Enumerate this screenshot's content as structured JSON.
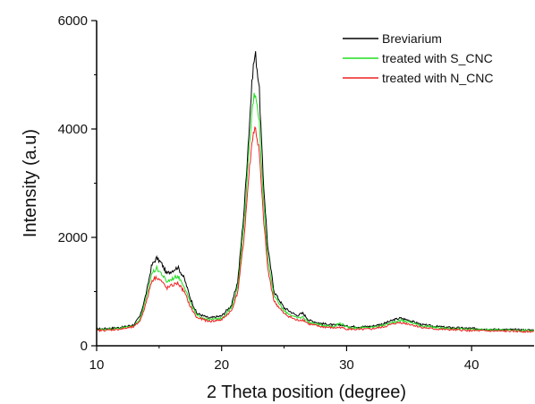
{
  "chart_data": {
    "type": "line",
    "xlabel": "2 Theta position (degree)",
    "ylabel": "Intensity (a.u)",
    "xlim": [
      10,
      45
    ],
    "ylim": [
      0,
      6000
    ],
    "xticks": [
      10,
      20,
      30,
      40
    ],
    "yticks": [
      0,
      2000,
      4000,
      6000
    ],
    "grid": false,
    "legend_position": "top-right",
    "series": [
      {
        "name": "Breviarium",
        "color": "#000000",
        "points": [
          [
            10,
            310
          ],
          [
            11,
            320
          ],
          [
            12,
            340
          ],
          [
            13,
            390
          ],
          [
            13.5,
            560
          ],
          [
            14,
            1000
          ],
          [
            14.4,
            1480
          ],
          [
            14.8,
            1620
          ],
          [
            15.2,
            1520
          ],
          [
            15.6,
            1330
          ],
          [
            16,
            1380
          ],
          [
            16.5,
            1450
          ],
          [
            17,
            1250
          ],
          [
            17.5,
            880
          ],
          [
            18,
            600
          ],
          [
            19,
            510
          ],
          [
            20,
            550
          ],
          [
            20.8,
            750
          ],
          [
            21.3,
            1200
          ],
          [
            21.8,
            2500
          ],
          [
            22.2,
            4000
          ],
          [
            22.5,
            5100
          ],
          [
            22.7,
            5400
          ],
          [
            23,
            4800
          ],
          [
            23.3,
            3200
          ],
          [
            23.7,
            1800
          ],
          [
            24.2,
            1000
          ],
          [
            25,
            700
          ],
          [
            26,
            560
          ],
          [
            26.5,
            600
          ],
          [
            27,
            470
          ],
          [
            28,
            410
          ],
          [
            29,
            380
          ],
          [
            29.5,
            390
          ],
          [
            30,
            360
          ],
          [
            31,
            350
          ],
          [
            32,
            360
          ],
          [
            33,
            410
          ],
          [
            33.8,
            480
          ],
          [
            34.3,
            510
          ],
          [
            35,
            470
          ],
          [
            36,
            390
          ],
          [
            37,
            360
          ],
          [
            38,
            340
          ],
          [
            40,
            320
          ],
          [
            42,
            300
          ],
          [
            43,
            300
          ],
          [
            45,
            290
          ]
        ]
      },
      {
        "name": "treated with S_CNC",
        "color": "#22dd22",
        "points": [
          [
            10,
            300
          ],
          [
            11,
            310
          ],
          [
            12,
            330
          ],
          [
            13,
            370
          ],
          [
            13.5,
            510
          ],
          [
            14,
            900
          ],
          [
            14.4,
            1330
          ],
          [
            14.8,
            1430
          ],
          [
            15.2,
            1330
          ],
          [
            15.6,
            1180
          ],
          [
            16,
            1230
          ],
          [
            16.5,
            1290
          ],
          [
            17,
            1110
          ],
          [
            17.5,
            790
          ],
          [
            18,
            560
          ],
          [
            19,
            480
          ],
          [
            20,
            510
          ],
          [
            20.8,
            700
          ],
          [
            21.3,
            1100
          ],
          [
            21.8,
            2250
          ],
          [
            22.2,
            3600
          ],
          [
            22.5,
            4500
          ],
          [
            22.7,
            4700
          ],
          [
            23,
            4200
          ],
          [
            23.3,
            2850
          ],
          [
            23.7,
            1600
          ],
          [
            24.2,
            920
          ],
          [
            25,
            640
          ],
          [
            26,
            510
          ],
          [
            26.5,
            530
          ],
          [
            27,
            430
          ],
          [
            28,
            380
          ],
          [
            29,
            360
          ],
          [
            29.5,
            420
          ],
          [
            30,
            340
          ],
          [
            31,
            330
          ],
          [
            32,
            340
          ],
          [
            33,
            380
          ],
          [
            33.8,
            440
          ],
          [
            34.3,
            470
          ],
          [
            35,
            440
          ],
          [
            36,
            370
          ],
          [
            37,
            340
          ],
          [
            38,
            320
          ],
          [
            40,
            300
          ],
          [
            42,
            290
          ],
          [
            43,
            290
          ],
          [
            45,
            280
          ]
        ]
      },
      {
        "name": "treated with N_CNC",
        "color": "#ee2222",
        "points": [
          [
            10,
            280
          ],
          [
            11,
            290
          ],
          [
            12,
            310
          ],
          [
            13,
            350
          ],
          [
            13.5,
            470
          ],
          [
            14,
            820
          ],
          [
            14.4,
            1200
          ],
          [
            14.8,
            1270
          ],
          [
            15.2,
            1190
          ],
          [
            15.6,
            1060
          ],
          [
            16,
            1110
          ],
          [
            16.5,
            1160
          ],
          [
            17,
            1000
          ],
          [
            17.5,
            720
          ],
          [
            18,
            520
          ],
          [
            19,
            450
          ],
          [
            20,
            480
          ],
          [
            20.8,
            650
          ],
          [
            21.3,
            1000
          ],
          [
            21.8,
            2000
          ],
          [
            22.2,
            3200
          ],
          [
            22.5,
            3900
          ],
          [
            22.7,
            4020
          ],
          [
            23,
            3600
          ],
          [
            23.3,
            2500
          ],
          [
            23.7,
            1400
          ],
          [
            24.2,
            820
          ],
          [
            25,
            590
          ],
          [
            26,
            470
          ],
          [
            26.5,
            480
          ],
          [
            27,
            400
          ],
          [
            28,
            350
          ],
          [
            29,
            330
          ],
          [
            29.5,
            340
          ],
          [
            30,
            310
          ],
          [
            31,
            300
          ],
          [
            32,
            310
          ],
          [
            33,
            350
          ],
          [
            33.8,
            410
          ],
          [
            34.3,
            430
          ],
          [
            35,
            400
          ],
          [
            36,
            340
          ],
          [
            37,
            310
          ],
          [
            38,
            300
          ],
          [
            40,
            280
          ],
          [
            42,
            270
          ],
          [
            43,
            270
          ],
          [
            45,
            260
          ]
        ]
      }
    ]
  }
}
